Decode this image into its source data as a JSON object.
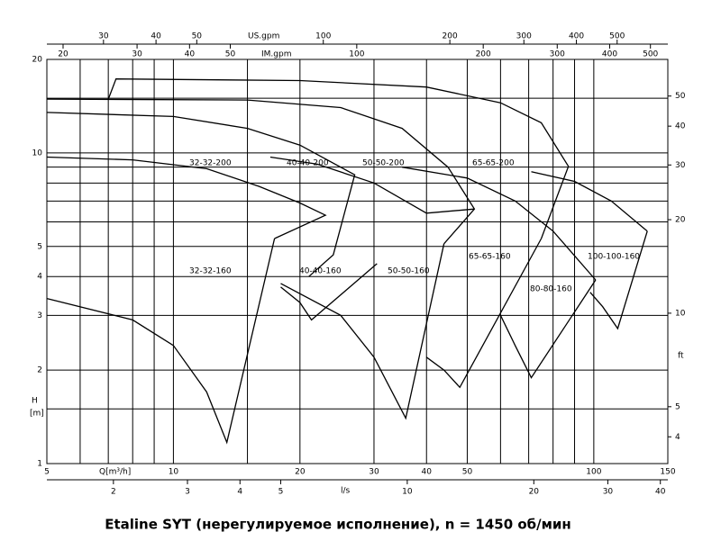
{
  "chart_data": {
    "type": "pump_curves",
    "caption": "Etaline SYT (нерегулируемое исполнение), n = 1450 об/мин",
    "xlabel": "Q[m³/h]",
    "ylabel_line1": "H",
    "ylabel_line2": "[m]",
    "x2label": "l/s",
    "x3label": "US.gpm",
    "x4label": "IM.gpm",
    "y2label": "ft",
    "log_x": true,
    "log_y": true,
    "grid": true,
    "color": "#000000",
    "xlim": [
      5,
      150
    ],
    "xticks": [
      5,
      10,
      20,
      30,
      40,
      50,
      100,
      150
    ],
    "ylim": [
      1,
      20
    ],
    "yticks": [
      1,
      2,
      3,
      4,
      5,
      10,
      20
    ],
    "xgrid": [
      6,
      7,
      8,
      9,
      15,
      60,
      70,
      80,
      90
    ],
    "ygrid": [
      1.5,
      6,
      7,
      8,
      9,
      15
    ],
    "x2lim": [
      1.389,
      41.67
    ],
    "x2ticks": [
      2,
      3,
      4,
      5,
      10,
      20,
      30,
      40
    ],
    "x3lim": [
      22,
      660
    ],
    "x3ticks": [
      30,
      40,
      50,
      100,
      200,
      300,
      400,
      500
    ],
    "x4lim": [
      18.3,
      550
    ],
    "x4ticks": [
      20,
      30,
      40,
      50,
      100,
      200,
      300,
      400,
      500
    ],
    "y2lim": [
      3.28,
      65.6
    ],
    "y2ticks": [
      4,
      5,
      10,
      20,
      30,
      40,
      50
    ],
    "pump_labels": [
      "32-32-200",
      "40-40-200",
      "50-50-200",
      "65-65-200",
      "32-32-160",
      "40-40-160",
      "50-50-160",
      "65-65-160",
      "80-80-160",
      "100-100-160"
    ],
    "curves": [
      {
        "q": [
          7.0,
          7.3,
          20,
          40,
          60,
          75,
          87,
          75
        ],
        "h": [
          14.9,
          17.3,
          17.1,
          16.3,
          14.5,
          12.5,
          9.05,
          5.3
        ]
      },
      {
        "q": [
          5,
          15,
          25,
          35,
          45,
          52,
          44
        ],
        "h": [
          14.9,
          14.8,
          14,
          12,
          9,
          6.6,
          5.1
        ]
      },
      {
        "q": [
          5,
          10,
          15,
          20,
          27,
          24,
          21
        ],
        "h": [
          13.5,
          13.1,
          12,
          10.6,
          8.5,
          4.7,
          4.0
        ]
      },
      {
        "q": [
          5,
          8,
          12,
          16,
          20,
          23,
          17.4
        ],
        "h": [
          9.7,
          9.5,
          8.9,
          7.8,
          6.9,
          6.3,
          5.3
        ]
      },
      {
        "q": [
          17,
          22,
          30,
          40,
          52
        ],
        "h": [
          9.7,
          9.2,
          8.0,
          6.4,
          6.6
        ]
      },
      {
        "q": [
          35,
          50,
          65,
          80,
          101
        ],
        "h": [
          9.0,
          8.3,
          7.0,
          5.6,
          3.9
        ]
      },
      {
        "q": [
          71,
          90,
          110,
          134
        ],
        "h": [
          8.7,
          8.1,
          7.0,
          5.6
        ]
      },
      {
        "q": [
          5,
          8,
          10,
          12,
          13.4,
          17.4
        ],
        "h": [
          3.4,
          2.9,
          2.4,
          1.7,
          1.17,
          5.3
        ]
      },
      {
        "q": [
          18,
          20,
          21.3,
          30.5
        ],
        "h": [
          3.7,
          3.3,
          2.9,
          4.4
        ]
      },
      {
        "q": [
          18,
          25,
          30,
          35.7,
          44
        ],
        "h": [
          3.8,
          3.0,
          2.2,
          1.4,
          5.1
        ]
      },
      {
        "q": [
          40,
          44,
          48,
          75
        ],
        "h": [
          2.2,
          2.0,
          1.76,
          5.3
        ]
      },
      {
        "q": [
          60,
          65,
          71,
          101
        ],
        "h": [
          3.0,
          2.4,
          1.89,
          3.9
        ]
      },
      {
        "q": [
          98,
          105,
          114,
          134
        ],
        "h": [
          3.56,
          3.2,
          2.72,
          5.6
        ]
      }
    ]
  }
}
